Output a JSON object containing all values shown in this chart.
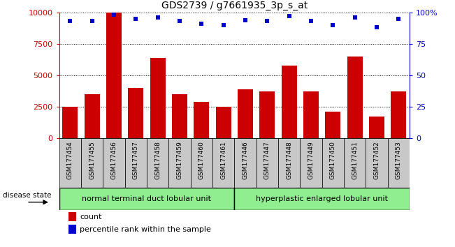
{
  "title": "GDS2739 / g7661935_3p_s_at",
  "samples": [
    "GSM177454",
    "GSM177455",
    "GSM177456",
    "GSM177457",
    "GSM177458",
    "GSM177459",
    "GSM177460",
    "GSM177461",
    "GSM177446",
    "GSM177447",
    "GSM177448",
    "GSM177449",
    "GSM177450",
    "GSM177451",
    "GSM177452",
    "GSM177453"
  ],
  "counts": [
    2500,
    3500,
    10000,
    4000,
    6400,
    3500,
    2900,
    2500,
    3900,
    3750,
    5800,
    3750,
    2100,
    6500,
    1750,
    3750
  ],
  "percentiles": [
    93,
    93,
    98,
    95,
    96,
    93,
    91,
    90,
    94,
    93,
    97,
    93,
    90,
    96,
    88,
    95
  ],
  "group1_label": "normal terminal duct lobular unit",
  "group2_label": "hyperplastic enlarged lobular unit",
  "group_color": "#90EE90",
  "bar_color": "#CC0000",
  "dot_color": "#0000CC",
  "ylim_left": [
    0,
    10000
  ],
  "ylim_right": [
    0,
    100
  ],
  "yticks_left": [
    0,
    2500,
    5000,
    7500,
    10000
  ],
  "yticks_right": [
    0,
    25,
    50,
    75,
    100
  ],
  "ytick_labels_left": [
    "0",
    "2500",
    "5000",
    "7500",
    "10000"
  ],
  "ytick_labels_right": [
    "0",
    "25",
    "50",
    "75",
    "100%"
  ],
  "legend_count_label": "count",
  "legend_pct_label": "percentile rank within the sample",
  "disease_state_label": "disease state",
  "tick_color_left": "#CC0000",
  "tick_color_right": "#0000CC",
  "xtick_bg": "#C8C8C8",
  "plot_bg": "white"
}
